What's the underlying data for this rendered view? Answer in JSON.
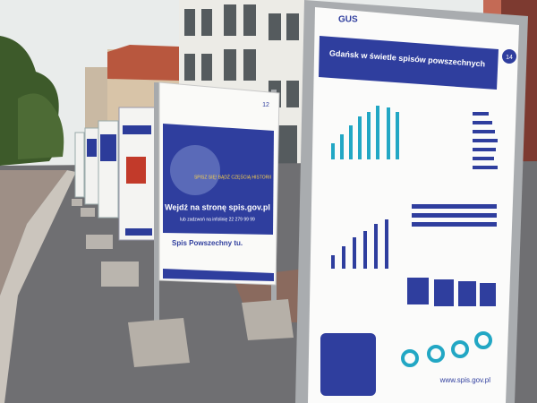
{
  "right_board": {
    "logo": "GUS",
    "title": "Gdańsk w świetle spisów powszechnych",
    "number": "14",
    "footer": "www.spis.gov.pl"
  },
  "middle_board": {
    "number": "12",
    "headline": "Wejdź na stronę spis.gov.pl",
    "subline": "lub zadzwoń na infolinię 22 279 99 99",
    "badge": "SPISZ SIĘ! BĄDŹ CZĘŚCIĄ HISTORII",
    "footer_title": "Spis Powszechny tu."
  }
}
